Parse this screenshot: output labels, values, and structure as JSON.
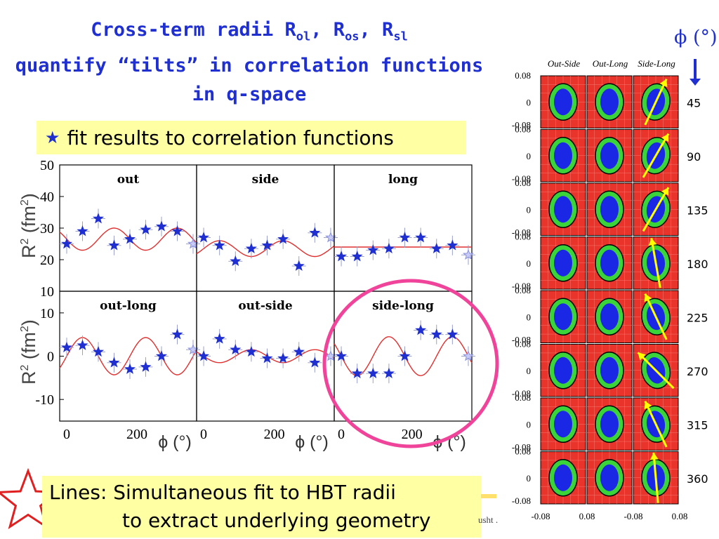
{
  "slide": {
    "title_lines": [
      {
        "base": "Cross-term radii R",
        "s1": "ol",
        "m1": ", R",
        "s2": "os",
        "m2": ", R",
        "s3": "sl"
      },
      "quantify “tilts” in correlation functions",
      "in q-space"
    ],
    "fit_box_text": "fit results to correlation functions",
    "ylabel": "R",
    "ylabel_sup": "2",
    "ylabel_unit": "(fm",
    "ylabel_unit_sup": "2",
    "ylabel_close": ")",
    "phi_header": "ϕ (°)",
    "bottom_line1": "Lines: Simultaneous fit to HBT radii",
    "bottom_line2": "to extract underlying geometry",
    "footer_fragment": "usht ."
  },
  "colors": {
    "title": "#1f2fd0",
    "marker": "#1f2fd0",
    "fit": "#e03030",
    "highlight": "#f0449a",
    "box": "#ffffa4",
    "red": "#e8342a",
    "green": "#3ad43a",
    "blue": "#1a28e6",
    "arrow": "#ffff00"
  },
  "chart_data": [
    {
      "type": "scatter",
      "title": "out",
      "xlabel": "ϕ (°)",
      "ylabel": "R² (fm²)",
      "xlim": [
        -20,
        370
      ],
      "ylim": [
        10,
        50
      ],
      "yticks": [
        "10",
        "20",
        "30",
        "40",
        "50"
      ],
      "xticks": [
        "0",
        "200"
      ],
      "x": [
        0,
        45,
        90,
        135,
        180,
        225,
        270,
        315,
        360
      ],
      "y": [
        25,
        29,
        33,
        24.5,
        26.5,
        29.5,
        30.5,
        29,
        25
      ],
      "open_last": true,
      "fit": {
        "offset": 26.5,
        "amp": 3.5,
        "phase": 90
      }
    },
    {
      "type": "scatter",
      "title": "side",
      "xlabel": "ϕ (°)",
      "ylim": [
        10,
        50
      ],
      "xticks": [
        "0",
        "200"
      ],
      "x": [
        0,
        45,
        90,
        135,
        180,
        225,
        270,
        315,
        360
      ],
      "y": [
        27,
        24.5,
        19.5,
        23.5,
        24.5,
        26.5,
        18,
        28.5,
        27
      ],
      "open_last": true,
      "fit": {
        "offset": 23.5,
        "amp": 2.5,
        "phase": 0
      }
    },
    {
      "type": "scatter",
      "title": "long",
      "xlabel": "ϕ (°)",
      "ylim": [
        10,
        50
      ],
      "xticks": [
        "0",
        "200"
      ],
      "x": [
        0,
        45,
        90,
        135,
        180,
        225,
        270,
        315,
        360
      ],
      "y": [
        21,
        21,
        23,
        23.5,
        27,
        27,
        23.5,
        24.5,
        21.5
      ],
      "open_last": true,
      "fit": {
        "offset": 24,
        "amp": 0,
        "phase": 0
      }
    },
    {
      "type": "scatter",
      "title": "out-long",
      "xlabel": "ϕ (°)",
      "ylabel": "R² (fm²)",
      "xlim": [
        -20,
        370
      ],
      "ylim": [
        -15,
        15
      ],
      "yticks": [
        "-10",
        "0",
        "10"
      ],
      "xticks": [
        "0",
        "200"
      ],
      "x": [
        0,
        45,
        90,
        135,
        180,
        225,
        270,
        315,
        360
      ],
      "y": [
        2,
        2.5,
        1,
        -1.5,
        -3,
        -2.5,
        0,
        5,
        1.5
      ],
      "open_last": true,
      "fit": {
        "offset": 0,
        "amp": 4.3,
        "phase": 0
      }
    },
    {
      "type": "scatter",
      "title": "out-side",
      "xlabel": "ϕ (°)",
      "ylim": [
        -15,
        15
      ],
      "xticks": [
        "0",
        "200"
      ],
      "x": [
        0,
        45,
        90,
        135,
        180,
        225,
        270,
        315,
        360
      ],
      "y": [
        0,
        4,
        1.5,
        1,
        -0.5,
        -0.5,
        1,
        -1.5,
        0
      ],
      "open_last": true,
      "fit": {
        "offset": 0,
        "amp": 1.5,
        "phase": 90
      }
    },
    {
      "type": "scatter",
      "title": "side-long",
      "xlabel": "ϕ (°)",
      "ylim": [
        -15,
        15
      ],
      "xticks": [
        "0",
        "200"
      ],
      "x": [
        0,
        45,
        90,
        135,
        180,
        225,
        270,
        315,
        360
      ],
      "y": [
        0,
        -4,
        -4,
        -4,
        0,
        6,
        5,
        5,
        0
      ],
      "open_last": true,
      "fit": {
        "offset": 0,
        "amp": 4.5,
        "phase": -90
      }
    }
  ],
  "tilt_grid": {
    "column_labels": [
      "Out-Side",
      "Out-Long",
      "Side-Long"
    ],
    "row_angles": [
      "45",
      "90",
      "135",
      "180",
      "225",
      "270",
      "315",
      "360"
    ],
    "ytick_labels": [
      "0.08",
      "0",
      "-0.08"
    ],
    "xtick_labels": [
      "-0.08",
      "0.08",
      "-0.08",
      "0.08"
    ],
    "arrow_tilt_deg": [
      25,
      30,
      30,
      -10,
      -25,
      -45,
      -25,
      -5
    ]
  }
}
